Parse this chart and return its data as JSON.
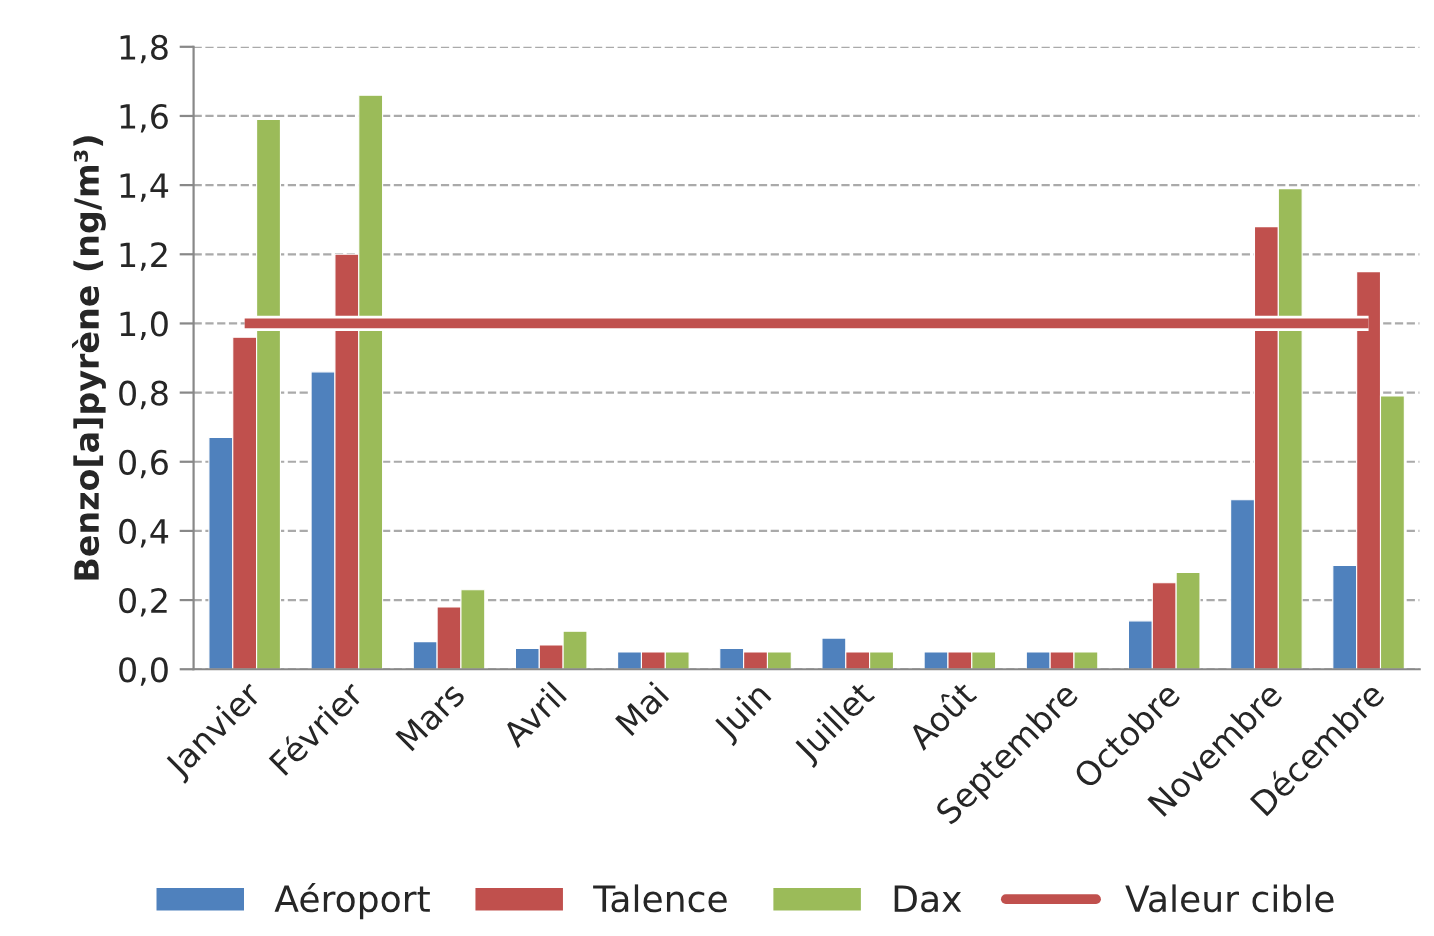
{
  "chart_data": {
    "type": "bar",
    "ylabel": "Benzo[a]pyrène (ng/m³)",
    "categories": [
      "Janvier",
      "Février",
      "Mars",
      "Avril",
      "Mai",
      "Juin",
      "Juillet",
      "Août",
      "Septembre",
      "Octobre",
      "Novembre",
      "Décembre"
    ],
    "series": [
      {
        "name": "Aéroport",
        "color": "#4f81bd",
        "values": [
          0.67,
          0.86,
          0.08,
          0.06,
          0.05,
          0.06,
          0.09,
          0.05,
          0.05,
          0.14,
          0.49,
          0.3
        ]
      },
      {
        "name": "Talence",
        "color": "#c0504d",
        "values": [
          0.96,
          1.2,
          0.18,
          0.07,
          0.05,
          0.05,
          0.05,
          0.05,
          0.05,
          0.25,
          1.28,
          1.15
        ]
      },
      {
        "name": "Dax",
        "color": "#9bbb59",
        "values": [
          1.59,
          1.66,
          0.23,
          0.11,
          0.05,
          0.05,
          0.05,
          0.05,
          0.05,
          0.28,
          1.39,
          0.79
        ]
      },
      {
        "name": "Valeur cible",
        "type": "line",
        "color": "#c0504d",
        "values": [
          1.0,
          1.0,
          1.0,
          1.0,
          1.0,
          1.0,
          1.0,
          1.0,
          1.0,
          1.0,
          1.0,
          1.0
        ]
      }
    ],
    "ylim": [
      0,
      1.8
    ],
    "yticks": [
      {
        "value": 0,
        "label": "0,0"
      },
      {
        "value": 0.2,
        "label": "0,2"
      },
      {
        "value": 0.4,
        "label": "0,4"
      },
      {
        "value": 0.6,
        "label": "0,6"
      },
      {
        "value": 0.8,
        "label": "0,8"
      },
      {
        "value": 1.0,
        "label": "1,0"
      },
      {
        "value": 1.2,
        "label": "1,2"
      },
      {
        "value": 1.4,
        "label": "1,4"
      },
      {
        "value": 1.6,
        "label": "1,6"
      },
      {
        "value": 1.8,
        "label": "1,8"
      }
    ],
    "grid": "y",
    "legend": "bottom"
  }
}
